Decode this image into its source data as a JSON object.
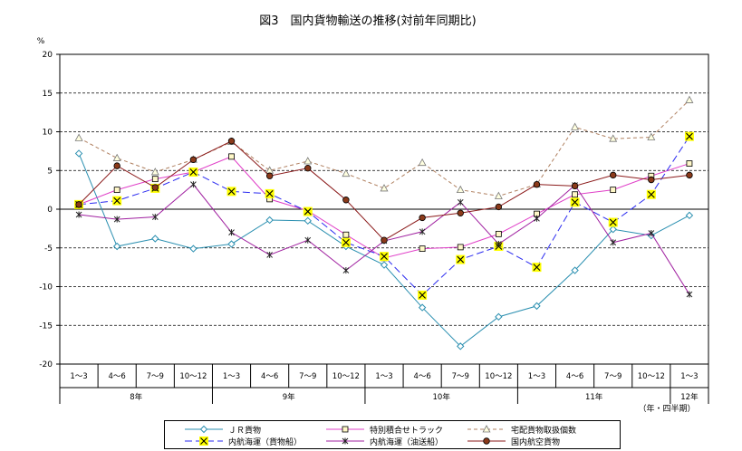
{
  "chart_data": {
    "type": "line",
    "title": "図3　国内貨物輸送の推移(対前年同期比)",
    "ylabel": "%",
    "ylim": [
      -20,
      20
    ],
    "yticks": [
      20,
      15,
      10,
      5,
      0,
      -5,
      -10,
      -15,
      -20
    ],
    "categories": [
      "1～3",
      "4～6",
      "7～9",
      "10～12",
      "1～3",
      "4～6",
      "7～9",
      "10～12",
      "1～3",
      "4～6",
      "7～9",
      "10～12",
      "1～3",
      "4～6",
      "7～9",
      "10～12",
      "1～3"
    ],
    "year_groups": [
      {
        "label": "8年",
        "count": 4
      },
      {
        "label": "9年",
        "count": 4
      },
      {
        "label": "10年",
        "count": 4
      },
      {
        "label": "11年",
        "count": 4
      },
      {
        "label": "12年",
        "count": 1
      }
    ],
    "x_unit_note": "（年・四半期）",
    "grid": "dashed horizontal",
    "legend_position": "bottom",
    "series": [
      {
        "name": "ＪＲ貨物",
        "color": "#2a8fb0",
        "dash": "solid",
        "marker": "diamond",
        "values": [
          7.2,
          -4.8,
          -3.8,
          -5.1,
          -4.5,
          -1.4,
          -1.5,
          -4.8,
          -7.2,
          -12.7,
          -17.7,
          -13.9,
          -12.5,
          -7.9,
          -2.6,
          -3.4,
          -0.8
        ]
      },
      {
        "name": "特別積合せトラック",
        "color": "#e040c8",
        "dash": "solid",
        "marker": "square",
        "values": [
          0.6,
          2.5,
          3.9,
          4.8,
          6.8,
          1.3,
          -0.2,
          -3.3,
          -6.3,
          -5.1,
          -4.9,
          -3.2,
          -0.6,
          1.9,
          2.5,
          4.3,
          5.9
        ]
      },
      {
        "name": "宅配貨物取扱個数",
        "color": "#b08060",
        "dash": "dashed",
        "marker": "triangle",
        "values": [
          9.2,
          6.6,
          4.8,
          6.4,
          8.7,
          5.0,
          6.2,
          4.6,
          2.7,
          6.0,
          2.5,
          1.7,
          3.2,
          10.6,
          9.1,
          9.3,
          14.1
        ]
      },
      {
        "name": "内航海運（貨物船）",
        "color": "#2a2af0",
        "dash": "dashed",
        "marker": "xbox",
        "values": [
          0.6,
          1.1,
          2.7,
          4.8,
          2.3,
          2.0,
          -0.3,
          -4.3,
          -6.1,
          -11.1,
          -6.5,
          -4.8,
          -7.5,
          0.9,
          -1.7,
          1.9,
          9.4
        ]
      },
      {
        "name": "内航海運（油送船）",
        "color": "#a020a0",
        "dash": "solid",
        "marker": "star",
        "values": [
          -0.7,
          -1.3,
          -1.0,
          3.2,
          -3.0,
          -5.9,
          -4.0,
          -7.9,
          -4.1,
          -2.9,
          0.9,
          -4.5,
          -1.2,
          3.1,
          -4.3,
          -3.1,
          -11.0
        ]
      },
      {
        "name": "国内航空貨物",
        "color": "#8b1a1a",
        "dash": "solid",
        "marker": "circle",
        "values": [
          0.6,
          5.6,
          2.8,
          6.4,
          8.8,
          4.3,
          5.3,
          1.2,
          -4.0,
          -1.1,
          -0.5,
          0.3,
          3.2,
          3.0,
          4.4,
          3.8,
          4.4
        ]
      }
    ]
  }
}
